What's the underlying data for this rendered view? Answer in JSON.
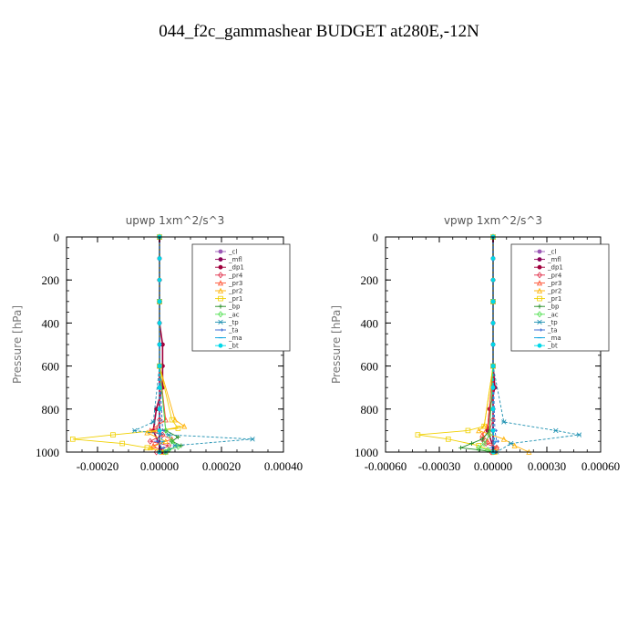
{
  "title": "044_f2c_gammashear  BUDGET at280E,-12N",
  "series_styles": [
    {
      "name": "_cl",
      "color": "#9b59b6"
    },
    {
      "name": "_mfl",
      "color": "#8b0057"
    },
    {
      "name": "_dp1",
      "color": "#a0003c"
    },
    {
      "name": "_pr4",
      "color": "#e0304a"
    },
    {
      "name": "_pr3",
      "color": "#ff5030"
    },
    {
      "name": "_pr2",
      "color": "#ffb000"
    },
    {
      "name": "_pr1",
      "color": "#f0d000"
    },
    {
      "name": "_bp",
      "color": "#228b22"
    },
    {
      "name": "_ac",
      "color": "#55e055"
    },
    {
      "name": "_tp",
      "color": "#1a8fb0"
    },
    {
      "name": "_ta",
      "color": "#3060d0"
    },
    {
      "name": "_ma",
      "color": "#00a0e0"
    },
    {
      "name": "_bt",
      "color": "#00d8e8"
    }
  ],
  "chart_data": [
    {
      "type": "line",
      "title": "upwp   1xm^2/s^3",
      "ylabel": "Pressure [hPa]",
      "xlim": [
        -0.0003,
        0.0004
      ],
      "ylim": [
        1000,
        0
      ],
      "xticks": [
        -0.0002,
        0.0,
        0.0002,
        0.0004
      ],
      "xtick_labels": [
        "-0.00020",
        "0.00000",
        "0.00020",
        "0.00040"
      ],
      "yticks": [
        0,
        200,
        400,
        600,
        800,
        1000
      ],
      "ytick_labels": [
        "0",
        "200",
        "400",
        "600",
        "800",
        "1000"
      ],
      "legend": "top-right",
      "series": [
        {
          "name": "_cl",
          "x": [
            0,
            0,
            0,
            0,
            0,
            0,
            0,
            0,
            0,
            0,
            0
          ],
          "y": [
            0,
            100,
            200,
            300,
            400,
            500,
            600,
            700,
            800,
            900,
            1000
          ]
        },
        {
          "name": "_mfl",
          "x": [
            0,
            0,
            0,
            0,
            0,
            0,
            0,
            0,
            0,
            0,
            0
          ],
          "y": [
            0,
            100,
            200,
            300,
            400,
            500,
            600,
            700,
            800,
            900,
            1000
          ]
        },
        {
          "name": "_dp1",
          "x": [
            0,
            0,
            0,
            0,
            0,
            1e-05,
            1e-05,
            1e-05,
            -1e-05,
            -2e-05,
            1e-05
          ],
          "y": [
            0,
            100,
            200,
            300,
            400,
            500,
            600,
            700,
            800,
            900,
            1000
          ]
        },
        {
          "name": "_pr4",
          "x": [
            0,
            0,
            0,
            0,
            0,
            0,
            -1e-05,
            1e-05,
            -3e-05,
            3e-05,
            -1e-05
          ],
          "y": [
            0,
            200,
            400,
            600,
            800,
            850,
            900,
            920,
            950,
            970,
            1000
          ]
        },
        {
          "name": "_pr3",
          "x": [
            0,
            0,
            0,
            2e-05,
            -3e-05,
            4e-05,
            -2e-05,
            1e-05
          ],
          "y": [
            0,
            300,
            600,
            850,
            900,
            940,
            970,
            1000
          ]
        },
        {
          "name": "_pr2",
          "x": [
            0,
            0,
            0,
            5e-05,
            8e-05,
            -4e-05,
            2e-05,
            -3e-05,
            1e-05
          ],
          "y": [
            0,
            300,
            600,
            850,
            880,
            910,
            950,
            980,
            1000
          ]
        },
        {
          "name": "_pr1",
          "x": [
            0,
            0,
            0,
            4e-05,
            6e-05,
            -0.00015,
            -0.00028,
            -0.00012,
            -4e-05,
            2e-05
          ],
          "y": [
            0,
            300,
            600,
            850,
            890,
            920,
            940,
            960,
            980,
            1000
          ]
        },
        {
          "name": "_bp",
          "x": [
            0,
            0,
            0,
            2e-05,
            6e-05,
            4e-05,
            7e-05,
            3e-05,
            2e-05
          ],
          "y": [
            0,
            300,
            600,
            900,
            930,
            950,
            970,
            990,
            1000
          ]
        },
        {
          "name": "_ac",
          "x": [
            0,
            0,
            0,
            2e-05,
            4e-05,
            6e-05,
            3e-05,
            2e-05
          ],
          "y": [
            0,
            300,
            600,
            900,
            950,
            975,
            990,
            1000
          ]
        },
        {
          "name": "_tp",
          "x": [
            0,
            0,
            0,
            -2e-05,
            -8e-05,
            3e-05,
            0.0003,
            5e-05,
            2e-05
          ],
          "y": [
            0,
            300,
            600,
            860,
            900,
            920,
            940,
            970,
            1000
          ]
        },
        {
          "name": "_ta",
          "x": [
            0,
            0,
            0,
            1e-05,
            -1e-05,
            1e-05,
            0
          ],
          "y": [
            0,
            300,
            600,
            900,
            950,
            980,
            1000
          ]
        },
        {
          "name": "_ma",
          "x": [
            0,
            0,
            0,
            0,
            1e-05,
            0
          ],
          "y": [
            0,
            300,
            600,
            900,
            950,
            1000
          ]
        },
        {
          "name": "_bt",
          "x": [
            0,
            0,
            0,
            0,
            0,
            0,
            0,
            0,
            0,
            0,
            0
          ],
          "y": [
            0,
            100,
            200,
            300,
            400,
            500,
            600,
            700,
            800,
            900,
            1000
          ]
        }
      ]
    },
    {
      "type": "line",
      "title": "vpwp   1xm^2/s^3",
      "ylabel": "Pressure [hPa]",
      "xlim": [
        -0.0006,
        0.0006
      ],
      "ylim": [
        1000,
        0
      ],
      "xticks": [
        -0.0006,
        -0.0003,
        0.0,
        0.0003,
        0.0006
      ],
      "xtick_labels": [
        "-0.00060",
        "-0.00030",
        "0.00000",
        "0.00030",
        "0.00060"
      ],
      "yticks": [
        0,
        200,
        400,
        600,
        800,
        1000
      ],
      "ytick_labels": [
        "0",
        "200",
        "400",
        "600",
        "800",
        "1000"
      ],
      "legend": "top-right",
      "series": [
        {
          "name": "_cl",
          "x": [
            0,
            0,
            0,
            0,
            0,
            0,
            0,
            0,
            0,
            0,
            0
          ],
          "y": [
            0,
            100,
            200,
            300,
            400,
            500,
            600,
            700,
            800,
            900,
            1000
          ]
        },
        {
          "name": "_mfl",
          "x": [
            0,
            0,
            0,
            0,
            0,
            0,
            0,
            0,
            0,
            0,
            0
          ],
          "y": [
            0,
            100,
            200,
            300,
            400,
            500,
            600,
            700,
            800,
            900,
            1000
          ]
        },
        {
          "name": "_dp1",
          "x": [
            0,
            0,
            0,
            0,
            0,
            0,
            0,
            1e-05,
            -2e-05,
            -3e-05,
            1e-05
          ],
          "y": [
            0,
            100,
            200,
            300,
            400,
            500,
            600,
            700,
            800,
            900,
            1000
          ]
        },
        {
          "name": "_pr4",
          "x": [
            0,
            0,
            0,
            0,
            0,
            0,
            -2e-05,
            -6e-05,
            -4e-05,
            2e-05,
            -1e-05
          ],
          "y": [
            0,
            200,
            400,
            600,
            800,
            850,
            900,
            940,
            960,
            980,
            1000
          ]
        },
        {
          "name": "_pr3",
          "x": [
            0,
            0,
            0,
            -3e-05,
            -6e-05,
            -3e-05,
            2e-05,
            0
          ],
          "y": [
            0,
            300,
            600,
            880,
            920,
            950,
            980,
            1000
          ]
        },
        {
          "name": "_pr2",
          "x": [
            0,
            0,
            0,
            -5e-05,
            -8e-05,
            6e-05,
            0.00012,
            0.0002
          ],
          "y": [
            0,
            300,
            600,
            880,
            900,
            940,
            970,
            1000
          ]
        },
        {
          "name": "_pr1",
          "x": [
            0,
            0,
            0,
            -5e-05,
            -0.00014,
            -0.00042,
            -0.00025,
            -8e-05,
            1e-05
          ],
          "y": [
            0,
            300,
            600,
            880,
            900,
            920,
            940,
            970,
            1000
          ]
        },
        {
          "name": "_bp",
          "x": [
            0,
            0,
            0,
            -2e-05,
            -6e-05,
            -0.00012,
            -0.00018,
            -8e-05,
            0
          ],
          "y": [
            0,
            300,
            600,
            900,
            940,
            960,
            980,
            990,
            1000
          ]
        },
        {
          "name": "_ac",
          "x": [
            0,
            0,
            0,
            -2e-05,
            -5e-05,
            -8e-05,
            -3e-05,
            0
          ],
          "y": [
            0,
            300,
            600,
            920,
            960,
            980,
            990,
            1000
          ]
        },
        {
          "name": "_tp",
          "x": [
            0,
            0,
            0,
            6e-05,
            0.00035,
            0.00048,
            0.0001,
            2e-05
          ],
          "y": [
            0,
            300,
            600,
            860,
            900,
            920,
            960,
            1000
          ]
        },
        {
          "name": "_ta",
          "x": [
            0,
            0,
            0,
            1e-05,
            2e-05,
            -1e-05,
            0
          ],
          "y": [
            0,
            300,
            600,
            900,
            950,
            980,
            1000
          ]
        },
        {
          "name": "_ma",
          "x": [
            0,
            0,
            0,
            0,
            1e-05,
            0
          ],
          "y": [
            0,
            300,
            600,
            900,
            950,
            1000
          ]
        },
        {
          "name": "_bt",
          "x": [
            0,
            0,
            0,
            0,
            0,
            0,
            0,
            0,
            0,
            0,
            0
          ],
          "y": [
            0,
            100,
            200,
            300,
            400,
            500,
            600,
            700,
            800,
            900,
            1000
          ]
        }
      ]
    }
  ]
}
